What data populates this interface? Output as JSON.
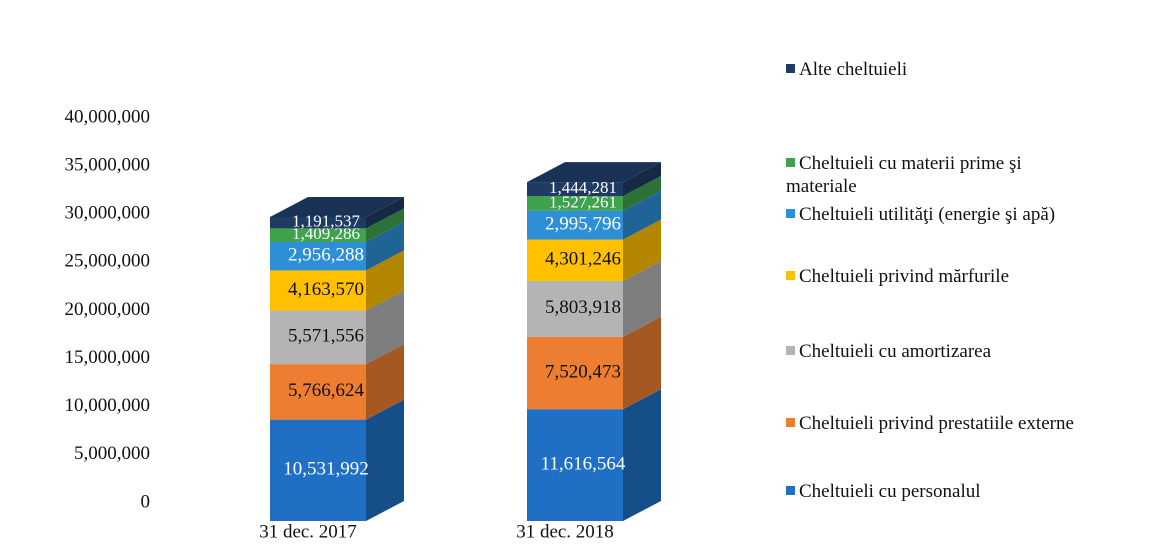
{
  "chart_data": {
    "type": "bar3d_stacked",
    "categories": [
      "31 dec. 2017",
      "31 dec. 2018"
    ],
    "series": [
      {
        "name": "Cheltuieli cu personalul",
        "color": "#1f6fc5",
        "values": [
          10531992,
          11616564
        ],
        "value_labels": [
          "10,531,992",
          "11,616,564"
        ]
      },
      {
        "name": "Cheltuieli privind prestatiile externe",
        "color": "#ed7d31",
        "values": [
          5766624,
          7520473
        ],
        "value_labels": [
          "5,766,624",
          "7,520,473"
        ]
      },
      {
        "name": "Cheltuieli cu amortizarea",
        "color": "#b4b4b4",
        "values": [
          5571556,
          5803918
        ],
        "value_labels": [
          "5,571,556",
          "5,803,918"
        ]
      },
      {
        "name": "Cheltuieli privind mărfurile",
        "color": "#ffc000",
        "values": [
          4163570,
          4301246
        ],
        "value_labels": [
          "4,163,570",
          "4,301,246"
        ]
      },
      {
        "name": "Cheltuieli utilităţi (energie şi apă)",
        "color": "#2e8fd6",
        "values": [
          2956288,
          2995796
        ],
        "value_labels": [
          "2,956,288",
          "2,995,796"
        ]
      },
      {
        "name": "Cheltuieli cu materii prime şi materiale",
        "color": "#3fa34d",
        "values": [
          1409286,
          1527261
        ],
        "value_labels": [
          "1,409,286",
          "1,527,261"
        ]
      },
      {
        "name": "Alte cheltuieli",
        "color": "#1f3b64",
        "values": [
          1191537,
          1444281
        ],
        "value_labels": [
          "1,191,537",
          "1,444,281"
        ]
      }
    ],
    "ylim": [
      0,
      40000000
    ],
    "yticks": [
      {
        "value": 0,
        "label": "0"
      },
      {
        "value": 5000000,
        "label": "5,000,000"
      },
      {
        "value": 10000000,
        "label": "10,000,000"
      },
      {
        "value": 15000000,
        "label": "15,000,000"
      },
      {
        "value": 20000000,
        "label": "20,000,000"
      },
      {
        "value": 25000000,
        "label": "25,000,000"
      },
      {
        "value": 30000000,
        "label": "30,000,000"
      },
      {
        "value": 35000000,
        "label": "35,000,000"
      },
      {
        "value": 40000000,
        "label": "40,000,000"
      }
    ],
    "legend": "right"
  }
}
